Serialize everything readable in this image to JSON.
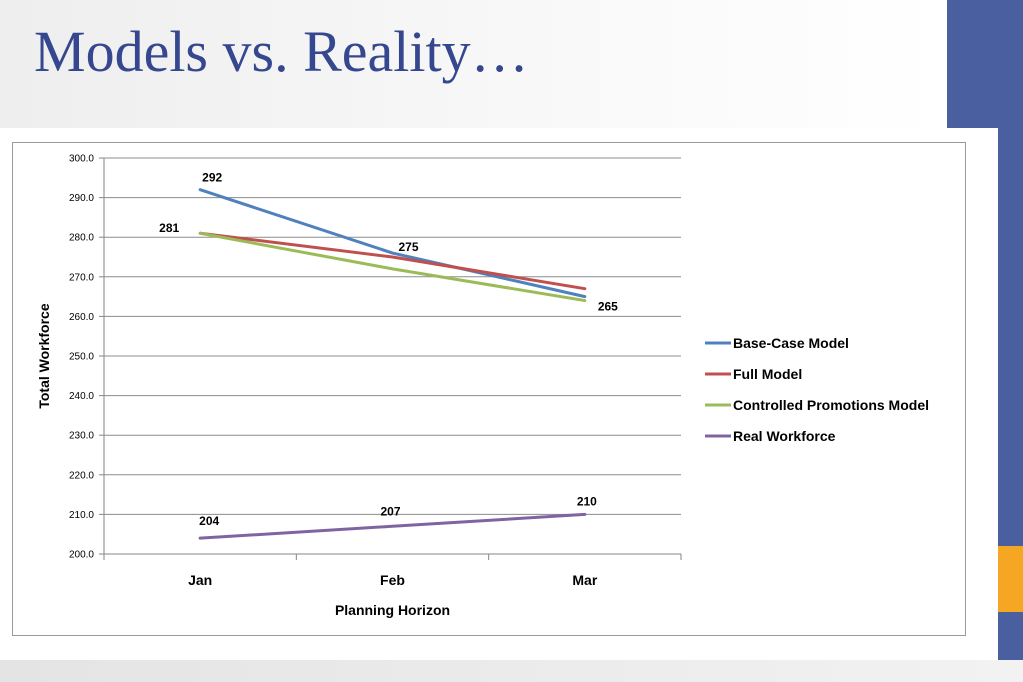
{
  "slide": {
    "title": "Models vs. Reality…",
    "colors": {
      "title": "#35478f",
      "right_band": "#4a5fa0",
      "accent": "#f5a623"
    }
  },
  "chart_data": {
    "type": "line",
    "title": "",
    "xlabel": "Planning Horizon",
    "ylabel": "Total Workforce",
    "categories": [
      "Jan",
      "Feb",
      "Mar"
    ],
    "ylim": [
      200,
      300
    ],
    "y_ticks": [
      "200.0",
      "210.0",
      "220.0",
      "230.0",
      "240.0",
      "250.0",
      "260.0",
      "270.0",
      "280.0",
      "290.0",
      "300.0"
    ],
    "grid": true,
    "legend_position": "right",
    "series": [
      {
        "name": "Base-Case Model",
        "values": [
          292,
          276,
          265
        ],
        "color": "#4f81bd"
      },
      {
        "name": "Full Model",
        "values": [
          281,
          275,
          267
        ],
        "color": "#c0504d"
      },
      {
        "name": "Controlled Promotions Model",
        "values": [
          281,
          272,
          264
        ],
        "color": "#9bbb59"
      },
      {
        "name": "Real Workforce",
        "values": [
          204,
          207,
          210
        ],
        "color": "#8064a2"
      }
    ],
    "data_labels": [
      {
        "text": "292",
        "series": 0,
        "index": 0
      },
      {
        "text": "281",
        "series": 1,
        "index": 0
      },
      {
        "text": "275",
        "series": 1,
        "index": 1
      },
      {
        "text": "265",
        "series": 0,
        "index": 2
      },
      {
        "text": "204",
        "series": 3,
        "index": 0
      },
      {
        "text": "207",
        "series": 3,
        "index": 1
      },
      {
        "text": "210",
        "series": 3,
        "index": 2
      }
    ]
  }
}
